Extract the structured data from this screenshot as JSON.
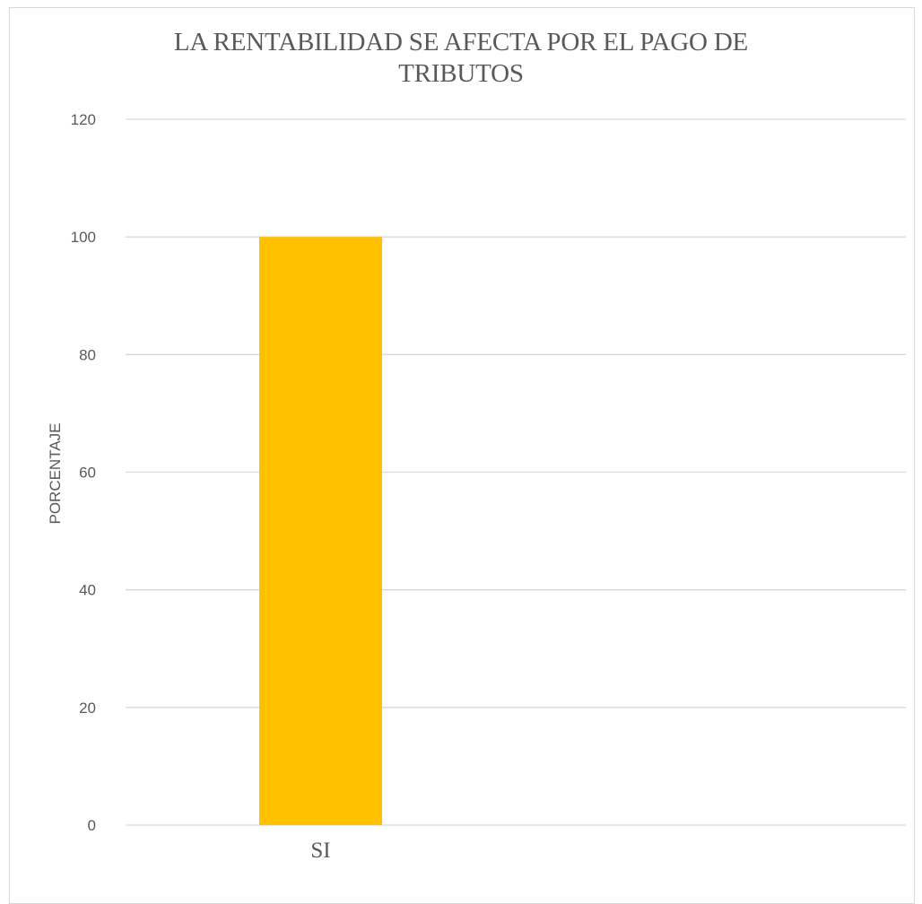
{
  "chart_data": {
    "type": "bar",
    "title_line1": "LA RENTABILIDAD SE AFECTA POR EL PAGO DE",
    "title_line2": "TRIBUTOS",
    "ylabel": "PORCENTAJE",
    "xlabel": "",
    "categories": [
      "SI"
    ],
    "values": [
      100
    ],
    "ylim": [
      0,
      120
    ],
    "yticks": [
      0,
      20,
      40,
      60,
      80,
      100,
      120
    ],
    "slots": 2,
    "grid": true,
    "legend": "none",
    "bar_color": "#FFC000",
    "grid_color": "#D9D9D9",
    "text_color": "#595959"
  }
}
